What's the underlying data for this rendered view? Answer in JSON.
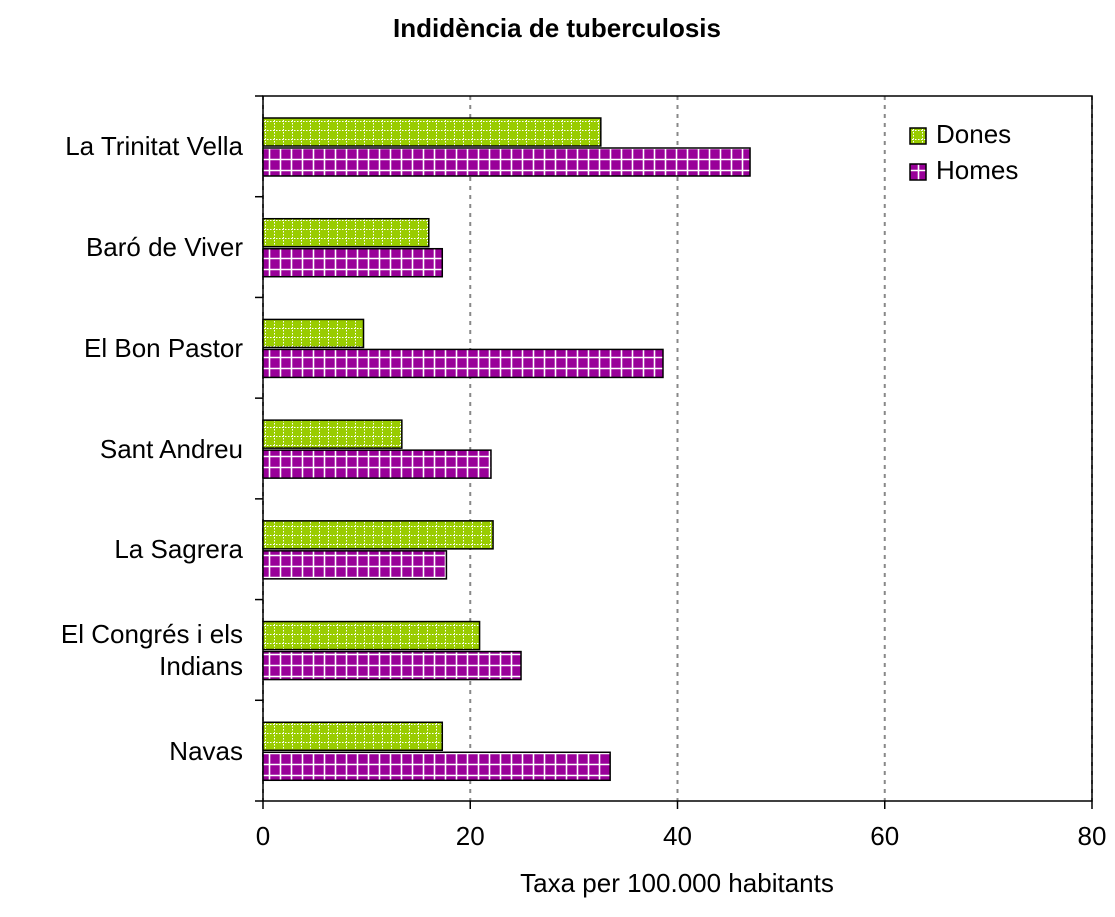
{
  "chart_data": {
    "type": "bar",
    "orientation": "horizontal",
    "title": "Indidència de tuberculosis",
    "x_label": "Taxa per 100.000 habitants",
    "categories": [
      "La Trinitat Vella",
      "Baró de Viver",
      "El Bon Pastor",
      "Sant Andreu",
      "La Sagrera",
      "El Congrés i els Indians",
      "Navas"
    ],
    "series": [
      {
        "name": "Dones",
        "color": "#99cc00",
        "values": [
          32.6,
          16.0,
          9.7,
          13.4,
          22.2,
          20.9,
          17.3
        ]
      },
      {
        "name": "Homes",
        "color": "#990099",
        "values": [
          47.0,
          17.3,
          38.6,
          22.0,
          17.7,
          24.9,
          33.5
        ]
      }
    ],
    "xlim": [
      0,
      80
    ],
    "xticks": [
      0,
      20,
      40,
      60,
      80
    ],
    "grid": true,
    "legend": "top-right"
  }
}
